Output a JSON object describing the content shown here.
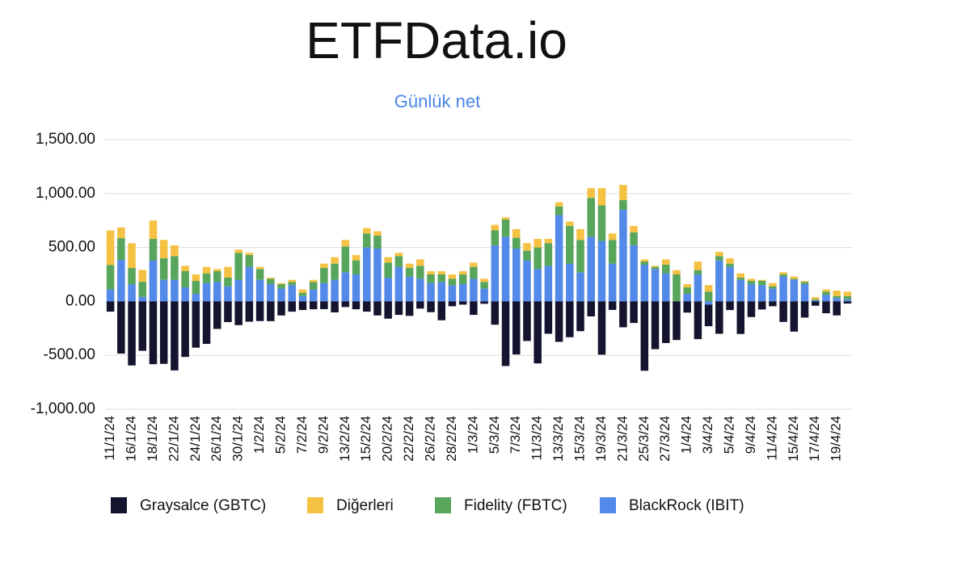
{
  "chart_data": {
    "type": "stacked-bar",
    "title": "ETFData.io",
    "subtitle": "Günlük net",
    "categories": [
      "11/1/24",
      null,
      "16/1/24",
      null,
      "18/1/24",
      null,
      "22/1/24",
      null,
      "24/1/24",
      null,
      "26/1/24",
      null,
      "30/1/24",
      null,
      "1/2/24",
      null,
      "5/2/24",
      null,
      "7/2/24",
      null,
      "9/2/24",
      null,
      "13/2/24",
      null,
      "15/2/24",
      null,
      "20/2/24",
      null,
      "22/2/24",
      null,
      "26/2/24",
      null,
      "28/2/24",
      null,
      "1/3/24",
      null,
      "5/3/24",
      null,
      "7/3/24",
      null,
      "11/3/24",
      null,
      "13/3/24",
      null,
      "15/3/24",
      null,
      "19/3/24",
      null,
      "21/3/24",
      null,
      "25/3/24",
      null,
      "27/3/24",
      null,
      "1/4/24",
      null,
      "3/4/24",
      null,
      "5/4/24",
      null,
      "9/4/24",
      null,
      "11/4/24",
      null,
      "15/4/24",
      null,
      "17/4/24",
      null,
      "19/4/24",
      null
    ],
    "series": [
      {
        "name": "Graysalce (GBTC)",
        "color": "#14142e",
        "values": [
          -95,
          -484,
          -594,
          -458,
          -582,
          -579,
          -640,
          -515,
          -429,
          -394,
          -255,
          -192,
          -220,
          -188,
          -182,
          -183,
          -130,
          -95,
          -80,
          -73,
          -72,
          -102,
          -52,
          -73,
          -95,
          -130,
          -160,
          -125,
          -134,
          -67,
          -100,
          -175,
          -45,
          -30,
          -125,
          -22,
          -216,
          -599,
          -492,
          -367,
          -575,
          -300,
          -375,
          -332,
          -276,
          -139,
          -494,
          -79,
          -240,
          -200,
          -643,
          -443,
          -386,
          -358,
          -104,
          -350,
          -200,
          -300,
          -80,
          -302,
          -145,
          -75,
          -45,
          -190,
          -280,
          -150,
          -40,
          -110,
          -130,
          -20
        ]
      },
      {
        "name": "Diğerleri",
        "color": "#f4c143",
        "values": [
          320,
          100,
          230,
          110,
          170,
          170,
          100,
          50,
          60,
          60,
          20,
          100,
          30,
          20,
          20,
          10,
          10,
          20,
          30,
          20,
          40,
          60,
          60,
          50,
          50,
          40,
          50,
          30,
          40,
          60,
          30,
          30,
          40,
          30,
          40,
          30,
          50,
          20,
          80,
          70,
          80,
          40,
          40,
          40,
          100,
          90,
          160,
          60,
          140,
          60,
          20,
          10,
          50,
          40,
          30,
          80,
          60,
          40,
          50,
          40,
          20,
          10,
          30,
          20,
          20,
          10,
          20,
          20,
          50,
          40
        ]
      },
      {
        "name": "Fidelity (FBTC)",
        "color": "#58a55c",
        "values": [
          227,
          200,
          150,
          140,
          200,
          200,
          220,
          150,
          120,
          90,
          100,
          80,
          250,
          110,
          100,
          50,
          40,
          30,
          30,
          70,
          140,
          150,
          240,
          130,
          130,
          120,
          140,
          100,
          80,
          120,
          80,
          70,
          60,
          90,
          110,
          60,
          140,
          160,
          100,
          90,
          200,
          210,
          80,
          350,
          300,
          360,
          330,
          220,
          90,
          120,
          30,
          20,
          80,
          250,
          60,
          40,
          90,
          40,
          30,
          20,
          30,
          40,
          20,
          20,
          10,
          20,
          10,
          30,
          20,
          30
        ]
      },
      {
        "name": "BlackRock (IBIT)",
        "color": "#5389e8",
        "values": [
          111,
          386,
          160,
          42,
          380,
          200,
          200,
          130,
          70,
          170,
          180,
          140,
          200,
          320,
          200,
          160,
          120,
          150,
          50,
          110,
          170,
          200,
          270,
          250,
          500,
          490,
          220,
          320,
          230,
          210,
          170,
          180,
          150,
          160,
          210,
          120,
          520,
          600,
          490,
          380,
          300,
          330,
          800,
          350,
          270,
          600,
          560,
          350,
          850,
          520,
          340,
          300,
          260,
          0,
          70,
          250,
          -30,
          380,
          320,
          200,
          160,
          150,
          120,
          230,
          200,
          160,
          10,
          60,
          30,
          20
        ]
      }
    ],
    "ylim": [
      -1000,
      1500
    ],
    "yticks": [
      {
        "value": -1000,
        "label": "-1,000.00"
      },
      {
        "value": -500,
        "label": "-500.00"
      },
      {
        "value": 0,
        "label": "0.00"
      },
      {
        "value": 500,
        "label": "500.00"
      },
      {
        "value": 1000,
        "label": "1,000.00"
      },
      {
        "value": 1500,
        "label": "1,500.00"
      }
    ],
    "grid": true
  }
}
